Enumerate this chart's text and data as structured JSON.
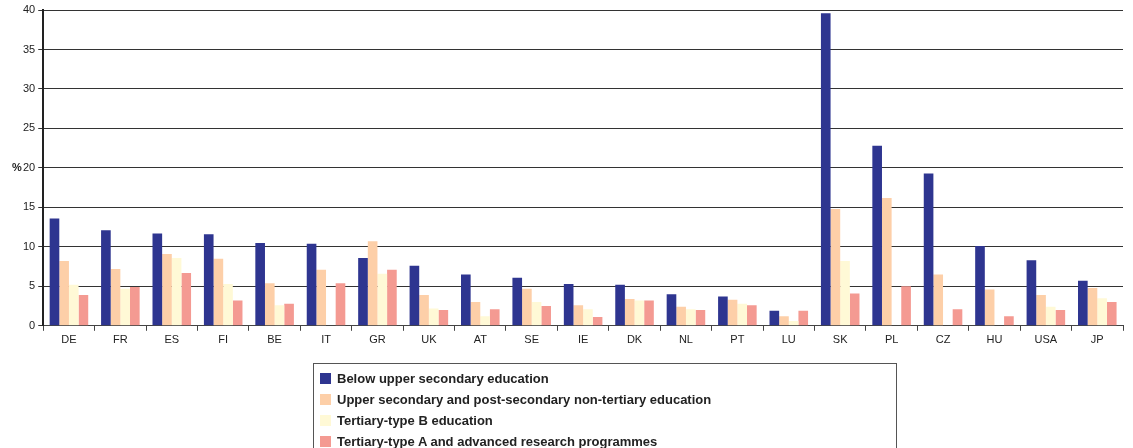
{
  "chart_data": {
    "type": "bar",
    "ylabel": "%",
    "categories": [
      "DE",
      "FR",
      "ES",
      "FI",
      "BE",
      "IT",
      "GR",
      "UK",
      "AT",
      "SE",
      "IE",
      "DK",
      "NL",
      "PT",
      "LU",
      "SK",
      "PL",
      "CZ",
      "HU",
      "USA",
      "JP"
    ],
    "series": [
      {
        "name": "Below upper secondary education",
        "color": "#2e3590",
        "values": [
          13.6,
          12.1,
          11.7,
          11.6,
          10.5,
          10.4,
          8.6,
          7.6,
          6.5,
          6.1,
          5.3,
          5.2,
          4.0,
          3.7,
          1.9,
          39.6,
          22.8,
          19.3,
          10.1,
          8.3,
          5.7
        ]
      },
      {
        "name": "Upper secondary and post-secondary non-tertiary education",
        "color": "#fdcfa8",
        "values": [
          8.2,
          7.2,
          9.1,
          8.5,
          5.4,
          7.1,
          10.7,
          3.9,
          3.0,
          4.7,
          2.6,
          3.4,
          2.4,
          3.3,
          1.2,
          14.8,
          16.2,
          6.5,
          4.6,
          3.9,
          4.8
        ]
      },
      {
        "name": "Tertiary-type B education",
        "color": "#fff9d6",
        "values": [
          5.2,
          4.7,
          8.6,
          5.3,
          2.6,
          null,
          6.6,
          2.2,
          1.2,
          3.0,
          2.1,
          3.2,
          2.1,
          2.8,
          0.6,
          8.2,
          null,
          null,
          null,
          2.4,
          3.5
        ]
      },
      {
        "name": "Tertiary-type A and advanced research programmes",
        "color": "#f49a92",
        "values": [
          3.9,
          4.9,
          6.7,
          3.2,
          2.8,
          5.4,
          7.1,
          2.0,
          2.1,
          2.5,
          1.1,
          3.2,
          2.0,
          2.6,
          1.9,
          4.1,
          5.0,
          2.1,
          1.2,
          2.0,
          3.0
        ]
      }
    ],
    "ylim": [
      0,
      40
    ],
    "yticks": [
      0,
      5,
      10,
      15,
      20,
      25,
      30,
      35,
      40
    ],
    "grid": "y",
    "legend": "bottom"
  }
}
